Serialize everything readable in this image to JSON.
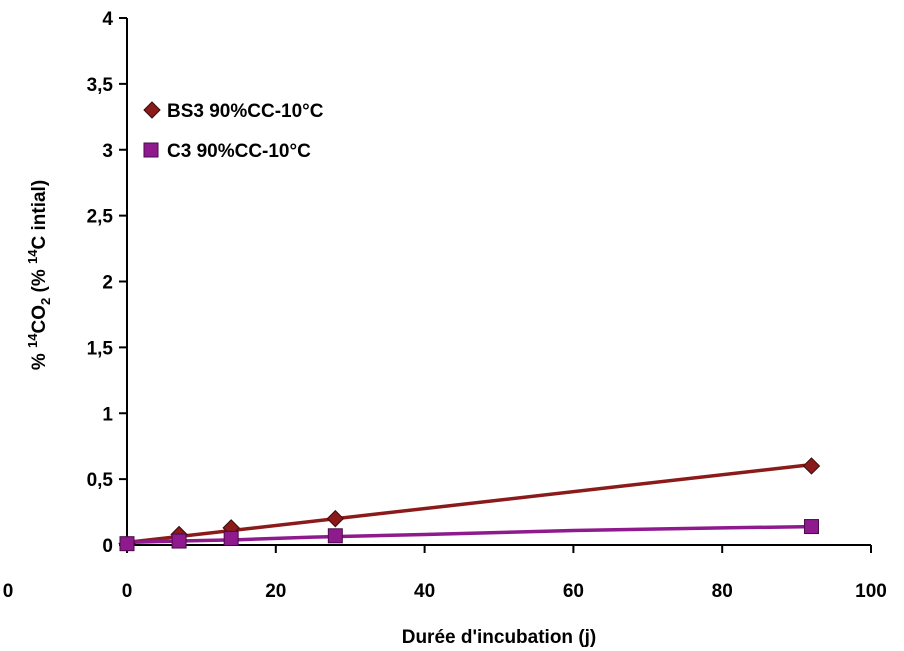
{
  "chart_data": {
    "type": "scatter",
    "xlabel": "Durée d'incubation (j)",
    "ylabel": {
      "part1": "% ",
      "sup1": "14",
      "part2": "CO",
      "sub": "2",
      "part3": " (%  ",
      "sup2": "14",
      "part4": "C intial)"
    },
    "xlim": [
      0,
      100
    ],
    "ylim": [
      0,
      4
    ],
    "x_ticks": [
      "0",
      "20",
      "40",
      "60",
      "80",
      "100"
    ],
    "x_tick_values": [
      0,
      20,
      40,
      60,
      80,
      100
    ],
    "y_ticks": [
      "0",
      "0,5",
      "1",
      "1,5",
      "2",
      "2,5",
      "3",
      "3,5",
      "4"
    ],
    "y_tick_values": [
      0,
      0.5,
      1,
      1.5,
      2,
      2.5,
      3,
      3.5,
      4
    ],
    "extra_x_label": "0",
    "legend_position": "top-left",
    "grid": false,
    "series": [
      {
        "name": "BS3 90%CC-10°C",
        "marker": "diamond",
        "color": "#8B1A1A",
        "points": [
          [
            0,
            0.01
          ],
          [
            7,
            0.08
          ],
          [
            14,
            0.13
          ],
          [
            28,
            0.2
          ],
          [
            92,
            0.6
          ]
        ],
        "fit": [
          [
            0,
            0.02
          ],
          [
            92,
            0.61
          ]
        ]
      },
      {
        "name": "C3 90%CC-10°C",
        "marker": "square",
        "color": "#8E1A8E",
        "points": [
          [
            0,
            0.01
          ],
          [
            7,
            0.03
          ],
          [
            14,
            0.05
          ],
          [
            28,
            0.07
          ],
          [
            92,
            0.14
          ]
        ],
        "fit": [
          [
            0,
            0.02
          ],
          [
            7,
            0.03
          ],
          [
            15,
            0.04
          ],
          [
            25,
            0.06
          ],
          [
            40,
            0.08
          ],
          [
            60,
            0.11
          ],
          [
            80,
            0.13
          ],
          [
            92,
            0.14
          ]
        ]
      }
    ]
  }
}
